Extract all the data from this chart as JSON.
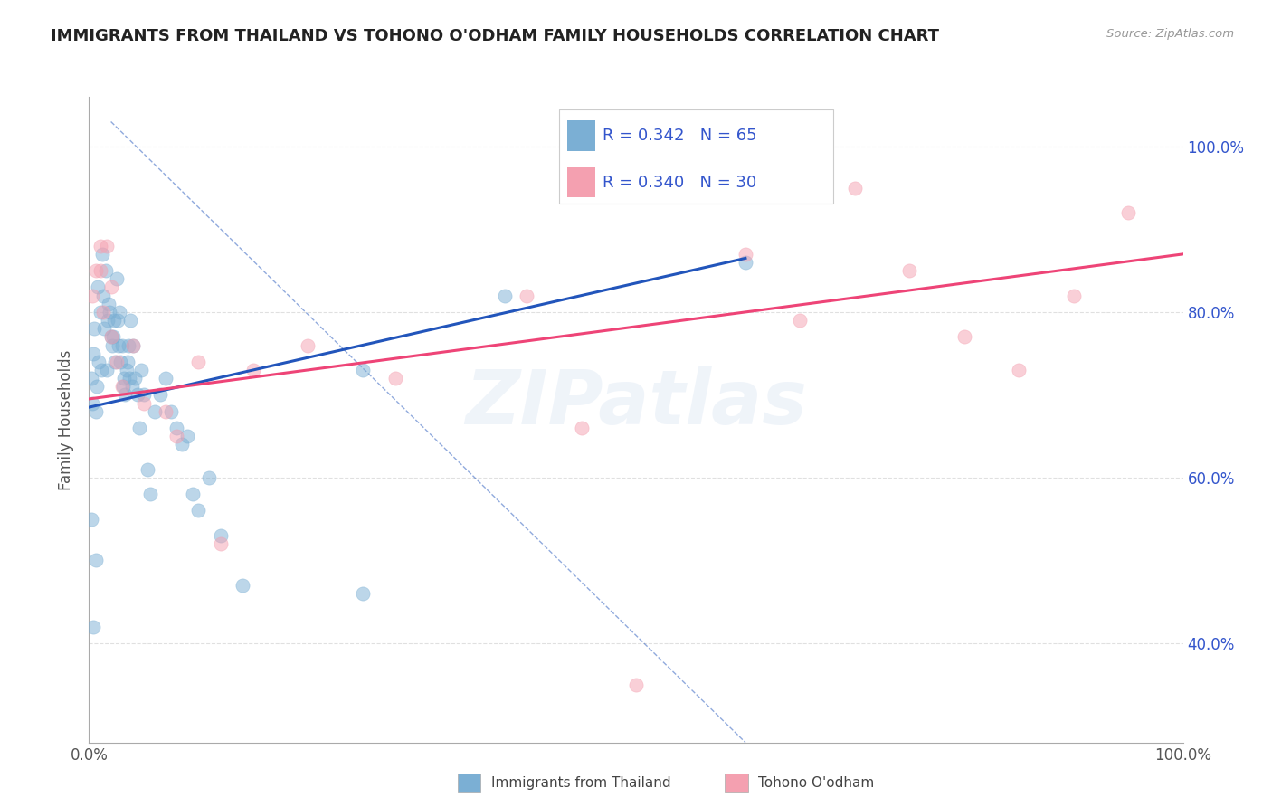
{
  "title": "IMMIGRANTS FROM THAILAND VS TOHONO O'ODHAM FAMILY HOUSEHOLDS CORRELATION CHART",
  "source": "Source: ZipAtlas.com",
  "ylabel": "Family Households",
  "legend_labels": [
    "Immigrants from Thailand",
    "Tohono O'odham"
  ],
  "blue_R": "0.342",
  "blue_N": "65",
  "pink_R": "0.340",
  "pink_N": "30",
  "blue_color": "#7BAFD4",
  "pink_color": "#F4A0B0",
  "blue_line_color": "#2255BB",
  "pink_line_color": "#EE4477",
  "title_color": "#222222",
  "axis_label_color": "#555555",
  "right_tick_color": "#3355CC",
  "background_color": "#FFFFFF",
  "grid_color": "#DDDDDD",
  "xlim": [
    0.0,
    1.0
  ],
  "ylim": [
    0.28,
    1.06
  ],
  "ytick_labels": [
    "40.0%",
    "60.0%",
    "80.0%",
    "100.0%"
  ],
  "ytick_positions": [
    0.4,
    0.6,
    0.8,
    1.0
  ],
  "blue_scatter_x": [
    0.002,
    0.003,
    0.004,
    0.005,
    0.006,
    0.007,
    0.008,
    0.009,
    0.01,
    0.011,
    0.012,
    0.013,
    0.014,
    0.015,
    0.016,
    0.017,
    0.018,
    0.019,
    0.02,
    0.021,
    0.022,
    0.023,
    0.024,
    0.025,
    0.026,
    0.027,
    0.028,
    0.029,
    0.03,
    0.031,
    0.032,
    0.033,
    0.034,
    0.035,
    0.036,
    0.037,
    0.038,
    0.039,
    0.04,
    0.042,
    0.044,
    0.046,
    0.048,
    0.05,
    0.053,
    0.056,
    0.06,
    0.065,
    0.07,
    0.075,
    0.08,
    0.085,
    0.09,
    0.095,
    0.1,
    0.11,
    0.12,
    0.14,
    0.25,
    0.38,
    0.002,
    0.004,
    0.006,
    0.6,
    0.25
  ],
  "blue_scatter_y": [
    0.72,
    0.69,
    0.75,
    0.78,
    0.68,
    0.71,
    0.83,
    0.74,
    0.8,
    0.73,
    0.87,
    0.82,
    0.78,
    0.85,
    0.73,
    0.79,
    0.81,
    0.8,
    0.77,
    0.76,
    0.77,
    0.79,
    0.74,
    0.84,
    0.79,
    0.76,
    0.8,
    0.74,
    0.76,
    0.71,
    0.72,
    0.7,
    0.73,
    0.74,
    0.76,
    0.72,
    0.79,
    0.71,
    0.76,
    0.72,
    0.7,
    0.66,
    0.73,
    0.7,
    0.61,
    0.58,
    0.68,
    0.7,
    0.72,
    0.68,
    0.66,
    0.64,
    0.65,
    0.58,
    0.56,
    0.6,
    0.53,
    0.47,
    0.73,
    0.82,
    0.55,
    0.42,
    0.5,
    0.86,
    0.46
  ],
  "pink_scatter_x": [
    0.003,
    0.006,
    0.01,
    0.013,
    0.016,
    0.02,
    0.025,
    0.03,
    0.05,
    0.08,
    0.1,
    0.15,
    0.2,
    0.28,
    0.4,
    0.5,
    0.6,
    0.65,
    0.7,
    0.75,
    0.8,
    0.85,
    0.9,
    0.95,
    0.12,
    0.02,
    0.01,
    0.04,
    0.07,
    0.45
  ],
  "pink_scatter_y": [
    0.82,
    0.85,
    0.85,
    0.8,
    0.88,
    0.77,
    0.74,
    0.71,
    0.69,
    0.65,
    0.74,
    0.73,
    0.76,
    0.72,
    0.82,
    0.35,
    0.87,
    0.79,
    0.95,
    0.85,
    0.77,
    0.73,
    0.82,
    0.92,
    0.52,
    0.83,
    0.88,
    0.76,
    0.68,
    0.66
  ],
  "blue_line_x": [
    0.0,
    0.6
  ],
  "blue_line_y": [
    0.685,
    0.865
  ],
  "pink_line_x": [
    0.0,
    1.0
  ],
  "pink_line_y": [
    0.695,
    0.87
  ],
  "ref_line_x": [
    0.02,
    0.6
  ],
  "ref_line_y": [
    1.03,
    0.28
  ]
}
